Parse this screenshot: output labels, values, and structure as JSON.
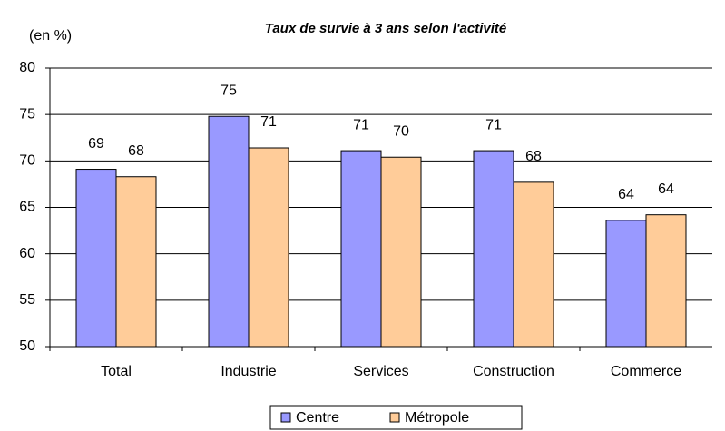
{
  "chart_data": {
    "type": "bar",
    "title": "Taux de survie à 3 ans selon l'activité",
    "y_label": "(en %)",
    "categories": [
      "Total",
      "Industrie",
      "Services",
      "Construction",
      "Commerce"
    ],
    "series": [
      {
        "name": "Centre",
        "color": "#9999ff",
        "values": [
          69.1,
          74.8,
          71.1,
          71.1,
          63.6
        ],
        "value_labels": [
          "69",
          "75",
          "71",
          "71",
          "64"
        ]
      },
      {
        "name": "Métropole",
        "color": "#ffcc99",
        "values": [
          68.3,
          71.4,
          70.4,
          67.7,
          64.2
        ],
        "value_labels": [
          "68",
          "71",
          "70",
          "68",
          "64"
        ]
      }
    ],
    "ylim": [
      50,
      80
    ],
    "yticks": [
      50,
      55,
      60,
      65,
      70,
      75,
      80
    ],
    "grid": true,
    "legend": "bottom"
  }
}
